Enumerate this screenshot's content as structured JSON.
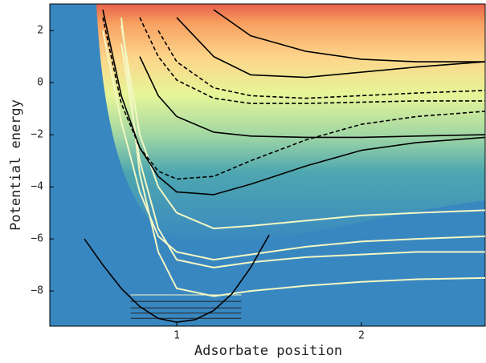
{
  "chart_data": {
    "type": "line",
    "xlabel": "Adsorbate position",
    "ylabel": "Potential energy",
    "xlim": [
      0.313,
      2.67
    ],
    "ylim": [
      -9.35,
      3.02
    ],
    "xticks": [
      1,
      2
    ],
    "yticks": [
      {
        "value": -8,
        "label": "−8"
      },
      {
        "value": -6,
        "label": "−6"
      },
      {
        "value": -4,
        "label": "−4"
      },
      {
        "value": -2,
        "label": "−2"
      },
      0,
      2
    ],
    "x": [
      0.5,
      0.6,
      0.7,
      0.8,
      0.9,
      1.0,
      1.2,
      1.4,
      1.7,
      2.0,
      2.3,
      2.67
    ],
    "series": [
      {
        "color": "#f3f7c4",
        "values": [
          null,
          null,
          2.5,
          -3.5,
          -6.5,
          -7.9,
          -8.2,
          -8.0,
          -7.8,
          -7.65,
          -7.55,
          -7.5
        ]
      },
      {
        "color": "#f3f7c4",
        "values": [
          null,
          null,
          1.5,
          -3.0,
          -5.6,
          -6.8,
          -7.1,
          -6.9,
          -6.7,
          -6.6,
          -6.5,
          -6.5
        ]
      },
      {
        "color": "#f3f7c4",
        "values": [
          null,
          2.0,
          -1.5,
          -4.2,
          -5.9,
          -6.5,
          -6.8,
          -6.6,
          -6.3,
          -6.1,
          -6.0,
          -5.9
        ]
      },
      {
        "color": "#f3f7c4",
        "values": [
          null,
          null,
          2.2,
          -2.0,
          -4.0,
          -5.0,
          -5.6,
          -5.5,
          -5.3,
          -5.1,
          -5.0,
          -4.9
        ]
      },
      {
        "color": "#000000",
        "dash": false,
        "values": [
          null,
          2.8,
          -0.5,
          -2.5,
          -3.6,
          -4.2,
          -4.3,
          -3.9,
          -3.2,
          -2.6,
          -2.3,
          -2.1
        ]
      },
      {
        "color": "#000000",
        "dash": true,
        "values": [
          null,
          2.5,
          -0.8,
          -2.5,
          -3.4,
          -3.7,
          -3.6,
          -3.0,
          -2.2,
          -1.6,
          -1.3,
          -1.1
        ]
      },
      {
        "color": "#000000",
        "dash": false,
        "values": [
          null,
          null,
          null,
          1.0,
          -0.5,
          -1.3,
          -1.9,
          -2.05,
          -2.1,
          -2.1,
          -2.05,
          -2.0
        ]
      },
      {
        "color": "#000000",
        "dash": true,
        "values": [
          null,
          null,
          null,
          2.5,
          1.0,
          0.1,
          -0.6,
          -0.8,
          -0.8,
          -0.75,
          -0.7,
          -0.7
        ]
      },
      {
        "color": "#000000",
        "dash": true,
        "values": [
          null,
          null,
          null,
          null,
          2.0,
          0.8,
          -0.2,
          -0.5,
          -0.6,
          -0.5,
          -0.4,
          -0.3
        ]
      },
      {
        "color": "#000000",
        "dash": false,
        "values": [
          null,
          null,
          null,
          null,
          null,
          2.5,
          1.0,
          0.3,
          0.2,
          0.4,
          0.6,
          0.8
        ]
      },
      {
        "color": "#000000",
        "dash": false,
        "values": [
          null,
          null,
          null,
          null,
          null,
          null,
          2.8,
          1.8,
          1.2,
          0.9,
          0.8,
          0.8
        ]
      },
      {
        "color": "#000000",
        "dash": false,
        "x": [
          0.5,
          0.6,
          0.7,
          0.8,
          0.9,
          1.0,
          1.1,
          1.2,
          1.3,
          1.4,
          1.5
        ],
        "values": [
          -6.0,
          -7.0,
          -7.9,
          -8.6,
          -9.05,
          -9.2,
          -9.1,
          -8.75,
          -8.1,
          -7.1,
          -5.85
        ]
      }
    ],
    "levels": [
      -9.05,
      -8.85,
      -8.65,
      -8.4,
      -8.15
    ]
  }
}
